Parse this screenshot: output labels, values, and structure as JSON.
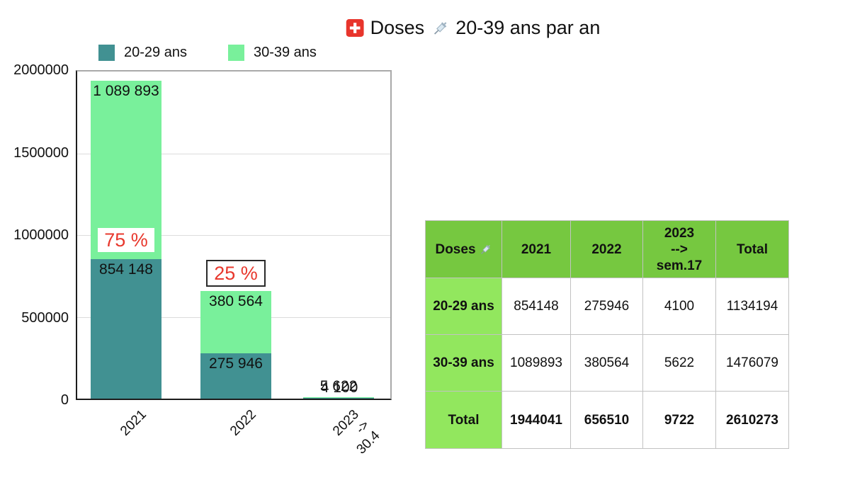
{
  "title": {
    "part1": "Doses",
    "part2": "20-39 ans par an"
  },
  "icons": {
    "flag": "swiss-flag-icon",
    "syringe": "syringe-icon"
  },
  "colors": {
    "series_20_29": "#419192",
    "series_30_39": "#79f09b",
    "table_header_bg": "#76c840",
    "table_label_bg": "#92e75e",
    "pct_red": "#e8382d",
    "grid": "#dcdcdc",
    "table_border": "#c2c2c2"
  },
  "chart_data": {
    "type": "bar",
    "stacked": true,
    "title": "Doses 💉 20-39 ans par an",
    "categories": [
      "2021",
      "2022",
      "2023\n->\n30.4"
    ],
    "series": [
      {
        "name": "20-29 ans",
        "color": "#419192",
        "values": [
          854148,
          275946,
          4100
        ]
      },
      {
        "name": "30-39 ans",
        "color": "#79f09b",
        "values": [
          1089893,
          380564,
          5622
        ]
      }
    ],
    "ylim": [
      0,
      2000000
    ],
    "yticks": [
      0,
      500000,
      1000000,
      1500000,
      2000000
    ],
    "ytick_labels": [
      "0",
      "500000",
      "1000000",
      "1500000",
      "2000000"
    ],
    "gridline_values": [
      500000,
      1000000,
      1500000
    ],
    "grid": true,
    "legend_position": "top-left",
    "value_labels": [
      {
        "bar": 0,
        "series": 1,
        "text": "1 089 893",
        "pos": "inside-top"
      },
      {
        "bar": 0,
        "series": 0,
        "text": "854 148",
        "pos": "inside-top"
      },
      {
        "bar": 1,
        "series": 1,
        "text": "380 564",
        "pos": "inside-top"
      },
      {
        "bar": 1,
        "series": 0,
        "text": "275 946",
        "pos": "inside-top"
      },
      {
        "bar": 2,
        "series": 1,
        "text": "5 622",
        "pos": "above"
      },
      {
        "bar": 2,
        "series": 0,
        "text": "4 100",
        "pos": "above"
      }
    ],
    "annotations": [
      {
        "bar": 0,
        "text": "75 %",
        "boxed": false,
        "anchor": "segment0-top"
      },
      {
        "bar": 1,
        "text": "25 %",
        "boxed": true,
        "anchor": "stack-top"
      }
    ]
  },
  "table": {
    "header": [
      "Doses",
      "2021",
      "2022",
      "2023\n-->\nsem.17",
      "Total"
    ],
    "rows": [
      {
        "label": "20-29 ans",
        "values": [
          "854148",
          "275946",
          "4100",
          "1134194"
        ],
        "bold_values": false
      },
      {
        "label": "30-39 ans",
        "values": [
          "1089893",
          "380564",
          "5622",
          "1476079"
        ],
        "bold_values": false
      },
      {
        "label": "Total",
        "values": [
          "1944041",
          "656510",
          "9722",
          "2610273"
        ],
        "bold_values": true
      }
    ]
  }
}
